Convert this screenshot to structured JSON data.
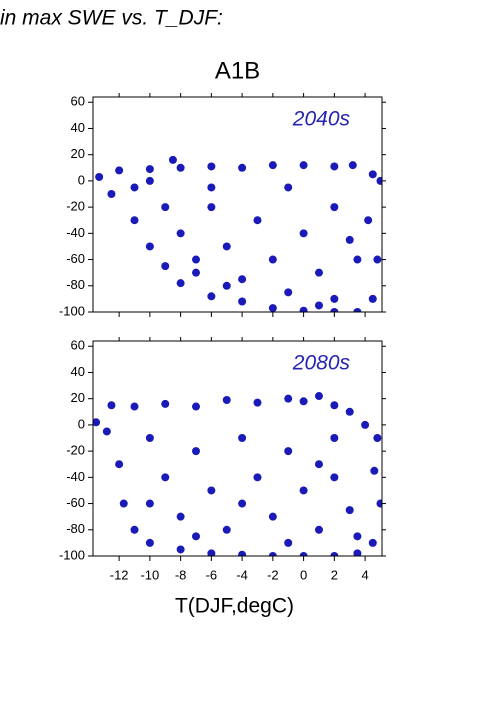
{
  "title": "in max SWE vs. T_DJF:",
  "chart_data": [
    {
      "type": "scatter",
      "title": "A1B",
      "annotation": "2040s",
      "color": "#1a1ab8",
      "xlim": [
        -13.7,
        5.1
      ],
      "ylim": [
        -100,
        64
      ],
      "xticks": [
        -12,
        -10,
        -8,
        -6,
        -4,
        -2,
        0,
        2,
        4
      ],
      "yticks": [
        -100,
        -80,
        -60,
        -40,
        -20,
        0,
        20,
        40,
        60
      ],
      "x": [
        -13.3,
        -12,
        -10,
        -8.5,
        -8,
        -6,
        -4,
        -2,
        0,
        2,
        3.2,
        4.5,
        5,
        -12.5,
        -11,
        -10,
        -9,
        -8,
        -6,
        -4,
        -2,
        0,
        2,
        3.5,
        4.5,
        4.8,
        4.2,
        3.5,
        -11,
        -9,
        -8,
        -7,
        -6,
        -5,
        -4,
        -3,
        -2,
        -1,
        0,
        1,
        2,
        2,
        3,
        -6,
        -1,
        -10,
        -7,
        -5,
        1
      ],
      "y": [
        3,
        8,
        9,
        16,
        10,
        11,
        10,
        12,
        12,
        11,
        12,
        5,
        0,
        -10,
        -30,
        -50,
        -65,
        -78,
        -88,
        -92,
        -97,
        -99,
        -100,
        -100,
        -90,
        -60,
        -30,
        -60,
        -5,
        -20,
        -40,
        -60,
        -20,
        -50,
        -75,
        -30,
        -60,
        -85,
        -40,
        -70,
        -20,
        -90,
        -45,
        -5,
        -5,
        0,
        -70,
        -80,
        -95
      ]
    },
    {
      "type": "scatter",
      "annotation": "2080s",
      "xlabel": "T(DJF,degC)",
      "color": "#1a1ab8",
      "xlim": [
        -13.7,
        5.1
      ],
      "ylim": [
        -100,
        64
      ],
      "xticks": [
        -12,
        -10,
        -8,
        -6,
        -4,
        -2,
        0,
        2,
        4
      ],
      "yticks": [
        -100,
        -80,
        -60,
        -40,
        -20,
        0,
        20,
        40,
        60
      ],
      "x": [
        -13.5,
        -12.5,
        -11,
        -9,
        -7,
        -5,
        -3,
        -1,
        0,
        1,
        2,
        3,
        4,
        4.8,
        -12.8,
        -12,
        -11.7,
        -11,
        -10,
        -8,
        -6,
        -4,
        -2,
        0,
        2,
        3.5,
        4.5,
        5,
        4.6,
        3.5,
        -10,
        -9,
        -8,
        -7,
        -6,
        -5,
        -4,
        -3,
        -2,
        -1,
        0,
        1,
        2,
        2,
        3,
        -10,
        -7,
        -4,
        -1,
        1
      ],
      "y": [
        2,
        15,
        14,
        16,
        14,
        19,
        17,
        20,
        18,
        22,
        15,
        10,
        0,
        -10,
        -5,
        -30,
        -60,
        -80,
        -90,
        -95,
        -98,
        -99,
        -100,
        -100,
        -100,
        -98,
        -90,
        -60,
        -35,
        -85,
        -10,
        -40,
        -70,
        -20,
        -50,
        -80,
        -10,
        -40,
        -70,
        -20,
        -50,
        -80,
        -10,
        -40,
        -65,
        -60,
        -85,
        -60,
        -90,
        -30
      ]
    }
  ]
}
